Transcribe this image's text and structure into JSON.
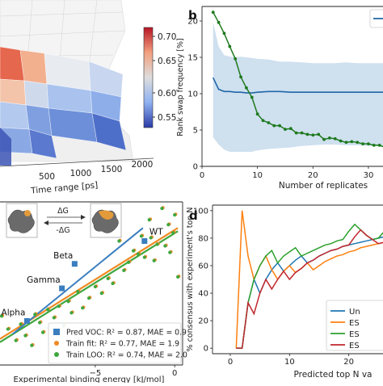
{
  "panels": {
    "a": {
      "time_axis_label": "Time range [ps]",
      "time_ticks": [
        "500",
        "1000",
        "1500",
        "2000"
      ],
      "colorbar_ticks": [
        "0.70",
        "0.65",
        "0.60",
        "0.55"
      ],
      "colorbar_range": [
        0.52,
        0.73
      ]
    },
    "b": {
      "letter": "b"
    },
    "c": {
      "xlabel": "Experimental binding energy [kJ/mol]",
      "inset_label_top": "ΔG",
      "inset_label_bottom": "-ΔG"
    },
    "d": {
      "letter": "d"
    }
  },
  "chart_data": [
    {
      "panel": "b",
      "type": "line",
      "xlabel": "Number of replicates",
      "ylabel": "Rank swap frequency [%]",
      "xlim": [
        0,
        37
      ],
      "ylim": [
        0,
        22
      ],
      "xticks": [
        0,
        10,
        20,
        30
      ],
      "yticks": [
        0,
        5,
        10,
        15,
        20
      ],
      "colors": {
        "green": "#1e7a1e",
        "blue": "#1f66a8",
        "band": "#cfe0ef"
      },
      "green_series": {
        "x": [
          2,
          3,
          4,
          5,
          6,
          7,
          8,
          9,
          10,
          11,
          12,
          13,
          14,
          15,
          16,
          17,
          18,
          19,
          20,
          21,
          22,
          23,
          24,
          25,
          26,
          27,
          28,
          29,
          30,
          31,
          32,
          33,
          34,
          35,
          36
        ],
        "y": [
          21.2,
          19.8,
          18.3,
          16.5,
          14.8,
          12.3,
          10.8,
          9.5,
          7.2,
          6.3,
          6.0,
          5.6,
          5.6,
          5.1,
          5.2,
          4.6,
          4.6,
          4.4,
          4.3,
          4.4,
          3.7,
          3.9,
          3.8,
          3.5,
          3.3,
          3.4,
          3.3,
          3.1,
          3.1,
          2.9,
          2.9,
          2.6,
          2.5,
          2.5,
          2.5
        ]
      },
      "blue_series": {
        "x": [
          2,
          3,
          4,
          5,
          6,
          7,
          8,
          9,
          10,
          12,
          14,
          16,
          18,
          20,
          22,
          24,
          26,
          28,
          30,
          32,
          34,
          36
        ],
        "y": [
          12.2,
          10.6,
          10.3,
          10.3,
          10.2,
          10.2,
          10.1,
          10.1,
          10.2,
          10.3,
          10.3,
          10.2,
          10.2,
          10.2,
          10.2,
          10.2,
          10.2,
          10.2,
          10.2,
          10.2,
          10.2,
          10.2
        ],
        "upper": [
          19.8,
          16.5,
          15.3,
          15.1,
          15.0,
          15.1,
          15.0,
          14.9,
          14.8,
          14.7,
          14.4,
          14.4,
          14.3,
          14.2,
          14.2,
          14.2,
          14.3,
          14.2,
          14.2,
          14.2,
          14.2,
          14.2
        ],
        "lower": [
          4.0,
          3.0,
          2.3,
          2.0,
          2.0,
          2.0,
          2.0,
          2.0,
          2.2,
          2.4,
          2.5,
          2.6,
          2.8,
          2.9,
          3.0,
          3.0,
          2.9,
          2.9,
          2.8,
          2.8,
          2.7,
          2.6
        ]
      }
    },
    {
      "panel": "c",
      "type": "scatter",
      "xlabel": "Experimental binding energy [kJ/mol]",
      "xlim": [
        -11,
        0.5
      ],
      "ylim": [
        0,
        10
      ],
      "xticks": [
        -5,
        0
      ],
      "colors": {
        "blue": "#3a7ebf",
        "orange": "#f08a24",
        "green": "#3fa73f"
      },
      "voc_points": [
        {
          "name": "WT",
          "x": -1.9,
          "y": 7.6
        },
        {
          "name": "Beta",
          "x": -6.3,
          "y": 6.2
        },
        {
          "name": "Gamma",
          "x": -7.1,
          "y": 4.7
        },
        {
          "name": "Alpha",
          "x": -9.3,
          "y": 2.7
        }
      ],
      "pred_line": {
        "x": [
          -10.2,
          -2.0
        ],
        "y": [
          1.9,
          8.4
        ]
      },
      "orange_line": {
        "x": [
          -11.0,
          0.2
        ],
        "y": [
          1.6,
          8.4
        ]
      },
      "green_line": {
        "x": [
          -11.0,
          0.2
        ],
        "y": [
          1.4,
          8.2
        ]
      },
      "train_points": [
        [
          -10.9,
          3.0
        ],
        [
          -10.5,
          2.2
        ],
        [
          -10.0,
          1.5
        ],
        [
          -9.7,
          2.5
        ],
        [
          -9.4,
          1.8
        ],
        [
          -9.0,
          1.2
        ],
        [
          -8.8,
          3.1
        ],
        [
          -8.5,
          2.6
        ],
        [
          -8.3,
          2.0
        ],
        [
          -8.0,
          3.4
        ],
        [
          -7.6,
          2.9
        ],
        [
          -7.3,
          3.6
        ],
        [
          -7.0,
          2.4
        ],
        [
          -6.7,
          3.9
        ],
        [
          -6.5,
          3.2
        ],
        [
          -6.1,
          4.5
        ],
        [
          -5.8,
          3.5
        ],
        [
          -5.4,
          4.1
        ],
        [
          -5.0,
          4.8
        ],
        [
          -4.6,
          4.4
        ],
        [
          -4.2,
          5.3
        ],
        [
          -3.9,
          5.0
        ],
        [
          -3.5,
          7.6
        ],
        [
          -3.2,
          5.8
        ],
        [
          -2.9,
          6.3
        ],
        [
          -2.6,
          7.0
        ],
        [
          -2.3,
          6.8
        ],
        [
          -2.1,
          7.9
        ],
        [
          -1.9,
          6.6
        ],
        [
          -1.6,
          8.9
        ],
        [
          -1.5,
          7.8
        ],
        [
          -1.3,
          6.4
        ],
        [
          -1.1,
          7.4
        ],
        [
          -0.8,
          9.6
        ],
        [
          -0.6,
          7.3
        ],
        [
          -0.4,
          8.6
        ],
        [
          -0.3,
          6.9
        ],
        [
          -0.1,
          8.1
        ],
        [
          0.0,
          9.2
        ],
        [
          0.2,
          5.4
        ]
      ],
      "legend": [
        {
          "label": "Pred VOC: ",
          "stat": "R² = 0.87, MAE = 0.9",
          "marker": "square",
          "color": "#3a7ebf"
        },
        {
          "label": "Train fit: ",
          "stat": "R² = 0.77, MAE = 1.9",
          "marker": "circle",
          "color": "#f08a24"
        },
        {
          "label": "Train LOO: ",
          "stat": "R² = 0.74, MAE = 2.0",
          "marker": "circle",
          "color": "#3fa73f"
        }
      ]
    },
    {
      "panel": "d",
      "type": "line",
      "xlabel": "Predicted top N va",
      "ylabel": "% consensus with experiment's top N",
      "xlim": [
        -3,
        28.5
      ],
      "ylim": [
        -4,
        104
      ],
      "xticks": [
        0,
        10,
        20
      ],
      "yticks": [
        0,
        20,
        40,
        60,
        80,
        100
      ],
      "x": [
        1,
        2,
        3,
        4,
        5,
        6,
        7,
        8,
        9,
        10,
        11,
        12,
        13,
        14,
        15,
        16,
        17,
        18,
        19,
        20,
        21,
        22,
        23,
        24,
        25,
        26,
        27,
        28
      ],
      "series": [
        {
          "name": "Un",
          "color": "#1f77b4",
          "values": [
            0,
            0,
            33,
            50,
            40,
            50,
            57,
            62,
            56,
            60,
            64,
            67,
            62,
            64,
            67,
            69,
            71,
            72,
            74,
            75,
            76,
            77,
            78,
            79,
            80,
            81,
            81,
            82
          ]
        },
        {
          "name": "ES",
          "color": "#ff7f0e",
          "values": [
            0,
            100,
            67,
            50,
            60,
            67,
            57,
            50,
            56,
            60,
            55,
            58,
            62,
            57,
            60,
            63,
            65,
            67,
            68,
            70,
            71,
            73,
            74,
            75,
            76,
            77,
            78,
            79
          ]
        },
        {
          "name": "ES",
          "color": "#2ca02c",
          "values": [
            0,
            0,
            33,
            50,
            60,
            67,
            71,
            62,
            67,
            70,
            73,
            67,
            69,
            71,
            73,
            75,
            76,
            78,
            79,
            85,
            90,
            86,
            82,
            79,
            80,
            85,
            82,
            78
          ]
        },
        {
          "name": "ES",
          "color": "#c0272d",
          "values": [
            0,
            0,
            33,
            25,
            40,
            50,
            43,
            50,
            56,
            50,
            55,
            58,
            62,
            64,
            67,
            69,
            71,
            72,
            74,
            75,
            81,
            86,
            82,
            79,
            76,
            77,
            78,
            79
          ]
        }
      ]
    }
  ]
}
